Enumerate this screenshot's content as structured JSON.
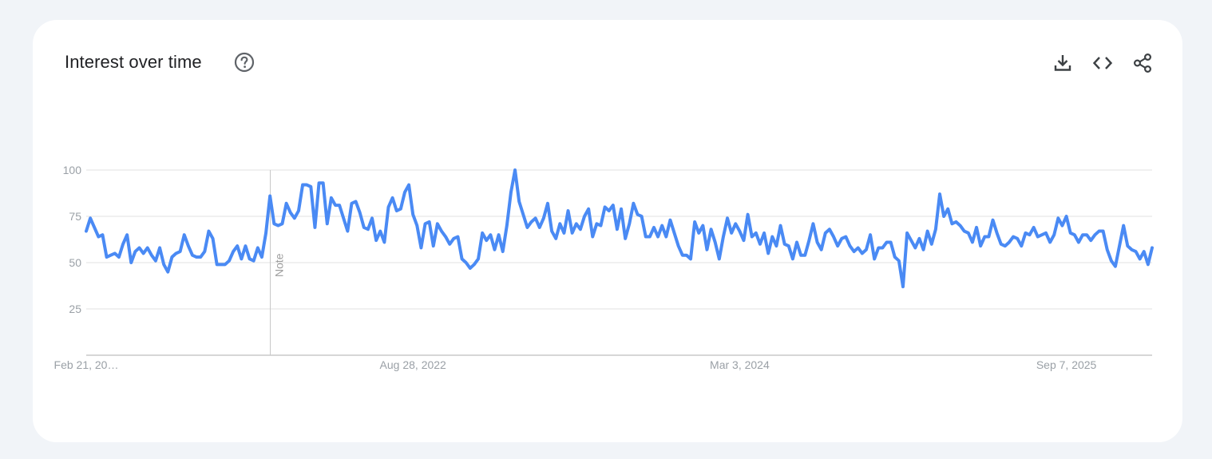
{
  "header": {
    "title": "Interest over time"
  },
  "icons": {
    "help": "help-circle-icon",
    "download": "download-icon",
    "embed": "embed-code-icon",
    "share": "share-icon"
  },
  "colors": {
    "line": "#4a8af4",
    "grid": "#e0e0e0",
    "axis_text": "#9aa0a6",
    "note_line": "#c8c8c8"
  },
  "chart_data": {
    "type": "line",
    "title": "Interest over time",
    "xlabel": "",
    "ylabel": "",
    "ylim": [
      0,
      100
    ],
    "y_ticks": [
      25,
      50,
      75,
      100
    ],
    "x_tick_labels": [
      "Feb 21, 20…",
      "Aug 28, 2022",
      "Mar 3, 2024",
      "Sep 7, 2025"
    ],
    "x_tick_indices": [
      0,
      80,
      160,
      240
    ],
    "note": {
      "label": "Note",
      "index": 45
    },
    "grid": true,
    "series": [
      {
        "values": [
          67,
          74,
          69,
          64,
          65,
          53,
          54,
          55,
          53,
          60,
          65,
          50,
          56,
          58,
          55,
          58,
          54,
          51,
          58,
          49,
          45,
          53,
          55,
          56,
          65,
          59,
          54,
          53,
          53,
          56,
          67,
          63,
          49,
          49,
          49,
          51,
          56,
          59,
          52,
          59,
          52,
          51,
          58,
          53,
          66,
          86,
          71,
          70,
          71,
          82,
          77,
          74,
          78,
          92,
          92,
          91,
          69,
          93,
          93,
          71,
          85,
          81,
          81,
          74,
          67,
          82,
          83,
          77,
          69,
          68,
          74,
          62,
          67,
          61,
          80,
          85,
          78,
          79,
          88,
          92,
          76,
          70,
          58,
          71,
          72,
          59,
          71,
          67,
          64,
          60,
          63,
          64,
          52,
          50,
          47,
          49,
          52,
          66,
          62,
          65,
          57,
          65,
          56,
          70,
          88,
          100,
          83,
          76,
          69,
          72,
          74,
          69,
          74,
          82,
          67,
          63,
          71,
          66,
          78,
          66,
          71,
          68,
          75,
          79,
          64,
          71,
          70,
          80,
          78,
          81,
          68,
          79,
          63,
          71,
          82,
          76,
          75,
          64,
          64,
          69,
          64,
          70,
          64,
          73,
          66,
          59,
          54,
          54,
          52,
          72,
          66,
          70,
          57,
          68,
          61,
          52,
          64,
          74,
          66,
          71,
          67,
          62,
          76,
          64,
          66,
          60,
          66,
          55,
          64,
          59,
          70,
          60,
          59,
          52,
          61,
          54,
          54,
          62,
          71,
          61,
          57,
          66,
          68,
          64,
          59,
          63,
          64,
          59,
          56,
          58,
          55,
          57,
          65,
          52,
          58,
          58,
          61,
          61,
          53,
          51,
          37,
          66,
          62,
          58,
          63,
          57,
          67,
          60,
          68,
          87,
          75,
          79,
          71,
          72,
          70,
          67,
          66,
          61,
          69,
          59,
          64,
          64,
          73,
          66,
          60,
          59,
          61,
          64,
          63,
          59,
          66,
          65,
          69,
          64,
          65,
          66,
          61,
          65,
          74,
          70,
          75,
          66,
          65,
          61,
          65,
          65,
          62,
          65,
          67,
          67,
          57,
          51,
          48,
          59,
          70,
          59,
          57,
          56,
          52,
          56,
          49,
          58
        ]
      }
    ]
  }
}
